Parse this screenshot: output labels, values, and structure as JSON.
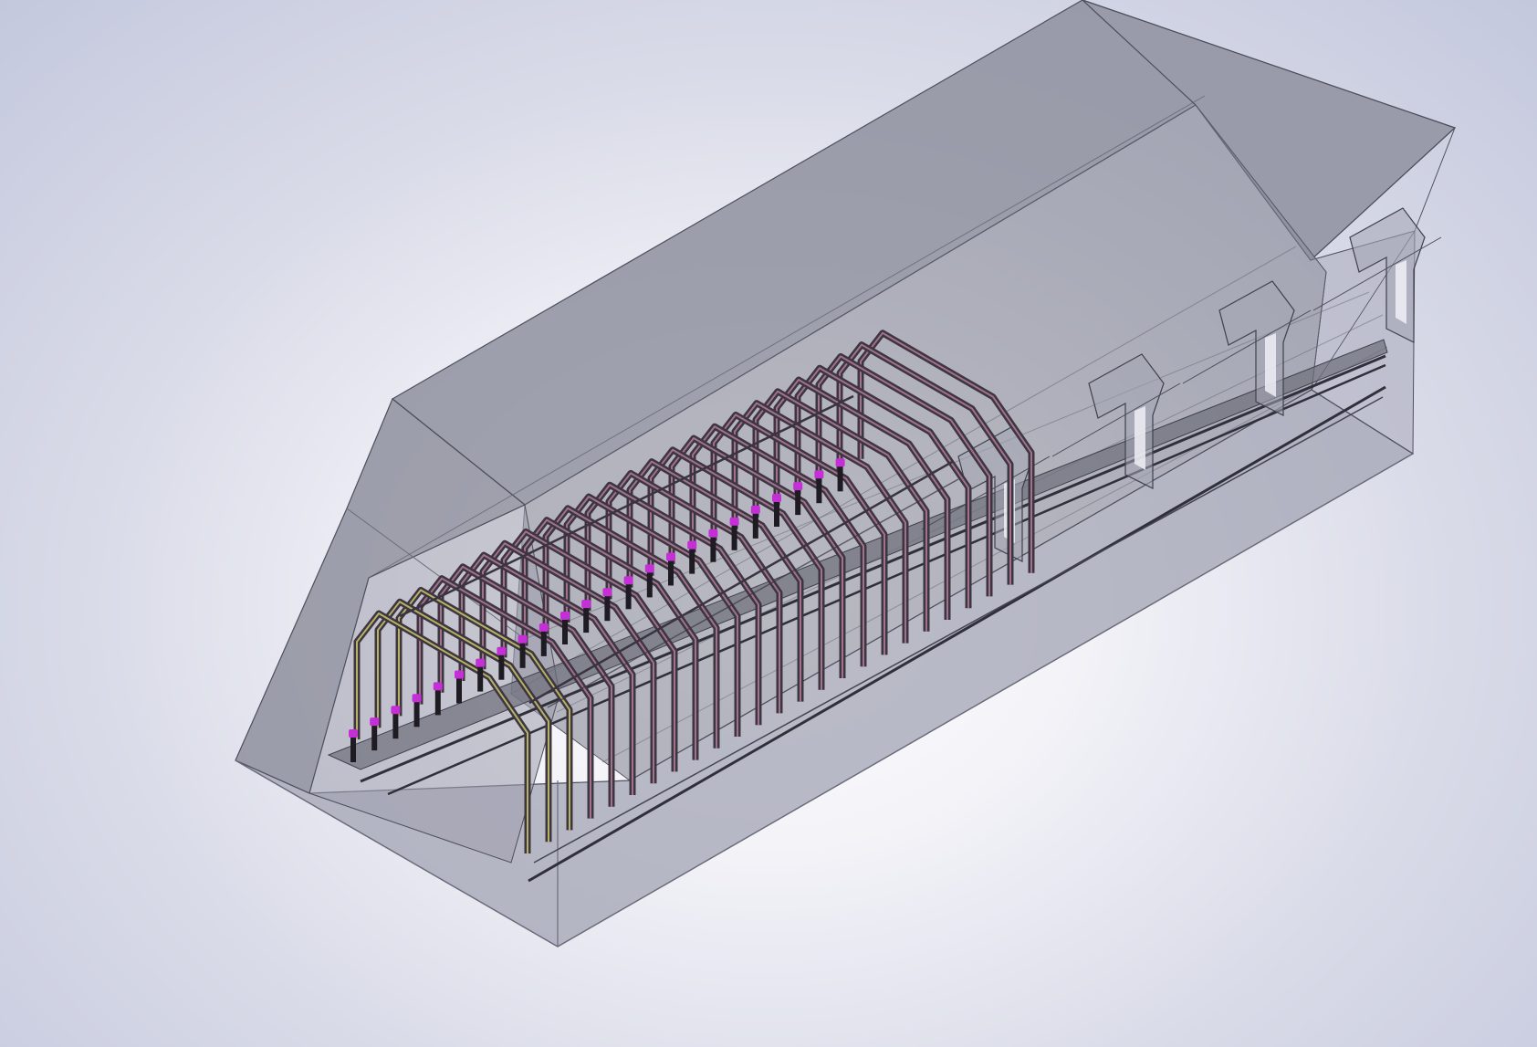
{
  "viewport": {
    "model": "tunnel-support-assembly",
    "view_mode": "isometric-transparent"
  },
  "colors": {
    "background_center": "#ffffff",
    "background_edge": "#c4c8dd",
    "housing_fill": "#8c8d9c",
    "housing_edge": "#4e4f5c",
    "arch_frame": "#3d3540",
    "arch_highlight": "#b27c9c",
    "leg_highlight": "#c9c86a",
    "anchor_bolt": "#c52fd6",
    "base_plate": "#5e5f6b",
    "support_bracket": "#a4a6b4"
  },
  "assembly": {
    "arch_frame_count": 25,
    "anchor_bolt_count": 24,
    "support_bracket_count": 4
  }
}
